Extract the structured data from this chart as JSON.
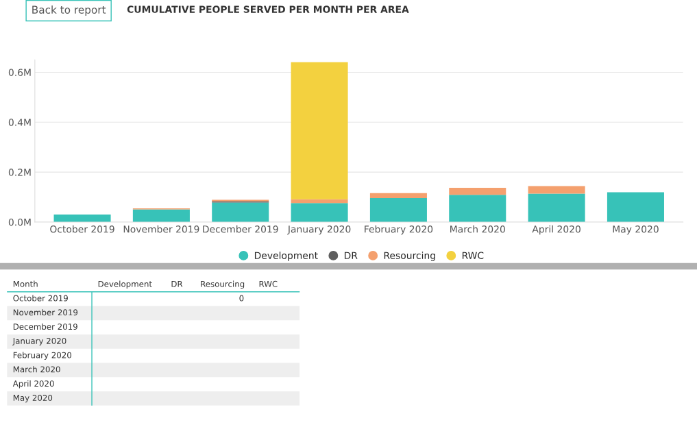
{
  "chart_data": [
    {
      "type": "bar",
      "title": "CUMULATIVE PEOPLE SERVED PER MONTH PER AREA",
      "annotations": [
        "Back to report"
      ],
      "categories": [
        "October 2019",
        "November 2019",
        "December 2019",
        "January 2020",
        "February 2020",
        "March 2020",
        "April 2020",
        "May 2020"
      ],
      "stacked": true,
      "series": [
        {
          "name": "Development",
          "color": "#37c2b8",
          "values": [
            0.03,
            0.051,
            0.078,
            0.076,
            0.096,
            0.109,
            0.114,
            0.119
          ]
        },
        {
          "name": "DR",
          "color": "#5f5f5f",
          "values": [
            null,
            null,
            0.005,
            null,
            null,
            null,
            null,
            null
          ]
        },
        {
          "name": "Resourcing",
          "color": "#f4a06e",
          "values": [
            0,
            0.004,
            0.006,
            0.015,
            0.02,
            0.028,
            0.03,
            null
          ]
        },
        {
          "name": "RWC",
          "color": "#f3d13f",
          "values": [
            null,
            null,
            null,
            0.549,
            null,
            null,
            null,
            null
          ]
        }
      ],
      "ylim": [
        0,
        0.65
      ],
      "yticks": [
        {
          "value": 0,
          "label": "0.0M"
        },
        {
          "value": 0.2,
          "label": "0.2M"
        },
        {
          "value": 0.4,
          "label": "0.4M"
        },
        {
          "value": 0.6,
          "label": "0.6M"
        }
      ],
      "grid": "y",
      "legend": "bottom"
    },
    {
      "type": "other",
      "categories": [
        "Month",
        "Development",
        "DR",
        "Resourcing",
        "RWC"
      ],
      "y_categories": [
        "October 2019",
        "November 2019",
        "December 2019",
        "January 2020",
        "February 2020",
        "March 2020",
        "April 2020",
        "May 2020"
      ],
      "cell_labels": [
        [
          null,
          null,
          "0",
          null
        ],
        [
          null,
          null,
          null,
          null
        ],
        [
          null,
          null,
          null,
          null
        ],
        [
          null,
          null,
          null,
          null
        ],
        [
          null,
          null,
          null,
          null
        ],
        [
          null,
          null,
          null,
          null
        ],
        [
          null,
          null,
          null,
          null
        ],
        [
          null,
          null,
          null,
          null
        ]
      ]
    }
  ]
}
